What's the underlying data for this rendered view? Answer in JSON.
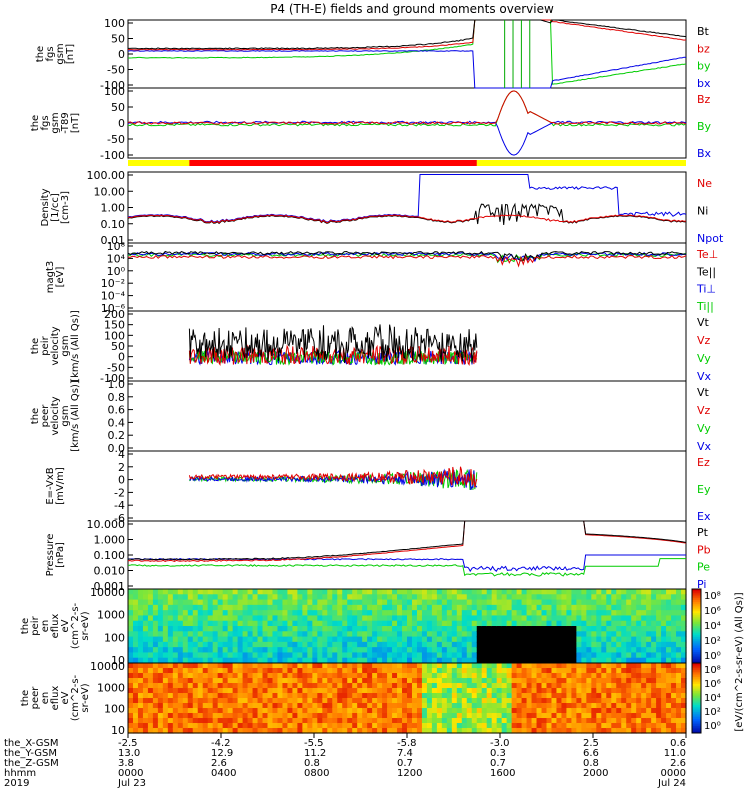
{
  "title": "P4 (TH-E) fields and ground moments overview",
  "colors": {
    "black": "#000000",
    "red": "#e00000",
    "green": "#00cc00",
    "blue": "#0000e6",
    "yellow": "#ffff00",
    "redbar": "#ff0000"
  },
  "chart_data": [
    {
      "type": "line",
      "panel": "fgs_gsm",
      "ylabel": [
        "the",
        "fgs",
        "gsm",
        "[nT]"
      ],
      "ylim": [
        -100,
        100
      ],
      "yticks": [
        100,
        50,
        0,
        -50,
        -100
      ],
      "series": [
        {
          "name": "Bt",
          "color": "#000000"
        },
        {
          "name": "bz",
          "color": "#e00000"
        },
        {
          "name": "by",
          "color": "#00cc00"
        },
        {
          "name": "bx",
          "color": "#0000e6"
        }
      ]
    },
    {
      "type": "line",
      "panel": "fgs_gsm_zoom",
      "ylabel": [
        "the",
        "fgs",
        "gsm",
        "-T89",
        "[nT]"
      ],
      "ylim": [
        -120,
        120
      ],
      "yticks": [
        100,
        50,
        0,
        -50,
        -100
      ],
      "series": [
        {
          "name": "Bz",
          "color": "#e00000"
        },
        {
          "name": "By",
          "color": "#00cc00"
        },
        {
          "name": "Bx",
          "color": "#0000e6"
        }
      ]
    },
    {
      "type": "line",
      "panel": "density",
      "scale": "log",
      "ylabel": [
        "Density",
        "[1/cc]",
        "[cm-3]"
      ],
      "ylim": [
        0.005,
        300
      ],
      "yticks": [
        "100.00",
        "10.00",
        "1.00",
        "0.10",
        "0.01"
      ],
      "series": [
        {
          "name": "Ne",
          "color": "#e00000"
        },
        {
          "name": "Ni",
          "color": "#000000"
        },
        {
          "name": "Npot",
          "color": "#0000e6"
        }
      ]
    },
    {
      "type": "line",
      "panel": "temperature",
      "scale": "log",
      "ylabel": [
        "magt3",
        "[eV]"
      ],
      "yticks": [
        "10⁸",
        "10⁴",
        "10⁰",
        "10⁻²",
        "10⁻⁴",
        "10⁻⁶"
      ],
      "series": [
        {
          "name": "Te⊥",
          "color": "#e00000"
        },
        {
          "name": "Te||",
          "color": "#000000"
        },
        {
          "name": "Ti⊥",
          "color": "#0000e6"
        },
        {
          "name": "Ti||",
          "color": "#00cc00"
        }
      ]
    },
    {
      "type": "line",
      "panel": "peir_velocity",
      "ylabel": [
        "the",
        "peir",
        "velocity",
        "gsm",
        "[km/s (All Qs)]"
      ],
      "ylim": [
        -100,
        200
      ],
      "yticks": [
        200,
        150,
        100,
        50,
        0,
        -50,
        -100
      ],
      "series": [
        {
          "name": "Vt",
          "color": "#000000"
        },
        {
          "name": "Vz",
          "color": "#e00000"
        },
        {
          "name": "Vy",
          "color": "#00cc00"
        },
        {
          "name": "Vx",
          "color": "#0000e6"
        }
      ]
    },
    {
      "type": "line",
      "panel": "peer_velocity",
      "ylabel": [
        "the",
        "peer",
        "velocity",
        "gsm",
        "[km/s (All Qs)]"
      ],
      "ylim": [
        0,
        1
      ],
      "yticks": [
        "1.0",
        "0.8",
        "0.6",
        "0.4",
        "0.2",
        "0.0"
      ],
      "series": [
        {
          "name": "Vt",
          "color": "#000000"
        },
        {
          "name": "Vz",
          "color": "#e00000"
        },
        {
          "name": "Vy",
          "color": "#00cc00"
        },
        {
          "name": "Vx",
          "color": "#0000e6"
        }
      ]
    },
    {
      "type": "line",
      "panel": "efield",
      "ylabel": [
        "E=-VxB",
        "[mV/m]"
      ],
      "ylim": [
        -6,
        4
      ],
      "yticks": [
        4,
        2,
        0,
        -2,
        -4,
        -6
      ],
      "series": [
        {
          "name": "Ez",
          "color": "#e00000"
        },
        {
          "name": "Ey",
          "color": "#00cc00"
        },
        {
          "name": "Ex",
          "color": "#0000e6"
        }
      ]
    },
    {
      "type": "line",
      "panel": "pressure",
      "scale": "log",
      "ylabel": [
        "Pressure",
        "[nPa]"
      ],
      "ylim": [
        0.001,
        10
      ],
      "yticks": [
        "10.000",
        "1.000",
        "0.100",
        "0.010",
        "0.001"
      ],
      "series": [
        {
          "name": "Pt",
          "color": "#000000"
        },
        {
          "name": "Pb",
          "color": "#e00000"
        },
        {
          "name": "Pe",
          "color": "#00cc00"
        },
        {
          "name": "Pi",
          "color": "#0000e6"
        }
      ]
    },
    {
      "type": "heatmap",
      "panel": "peir_spectrogram",
      "ylabel": [
        "the",
        "peir",
        "en",
        "eflux",
        "eV",
        "(cm^2-s-",
        "sr-eV)"
      ],
      "yticks": [
        "10000",
        "1000",
        "100",
        "10"
      ]
    },
    {
      "type": "heatmap",
      "panel": "peer_spectrogram",
      "ylabel": [
        "the",
        "peer",
        "en",
        "eflux",
        "eV",
        "(cm^2-s-",
        "sr-eV)"
      ],
      "yticks": [
        "10000",
        "1000",
        "100",
        "10"
      ]
    }
  ],
  "colorbar": {
    "label": "[eV/(cm^2-s-sr-eV) (All Qs)]",
    "ticks_upper": [
      "10⁸",
      "10⁶",
      "10⁴",
      "10²",
      "10⁰"
    ],
    "ticks_lower": [
      "10⁸",
      "10⁶",
      "10⁴",
      "10²",
      "10⁰"
    ]
  },
  "xaxis": {
    "row_labels": [
      "the_X-GSM",
      "the_Y-GSM",
      "the_Z-GSM",
      "hhmm",
      "2019"
    ],
    "columns": [
      [
        "-2.5",
        "13.0",
        "3.8",
        "0000",
        "Jul 23"
      ],
      [
        "-4.2",
        "12.9",
        "2.6",
        "0400",
        ""
      ],
      [
        "-5.5",
        "11.2",
        "0.8",
        "0800",
        ""
      ],
      [
        "-5.8",
        "7.4",
        "0.7",
        "1200",
        ""
      ],
      [
        "-3.0",
        "0.3",
        "0.7",
        "1600",
        ""
      ],
      [
        "2.5",
        "6.6",
        "0.8",
        "2000",
        ""
      ],
      [
        "0.6",
        "11.0",
        "2.6",
        "0000",
        "Jul 24"
      ]
    ]
  }
}
